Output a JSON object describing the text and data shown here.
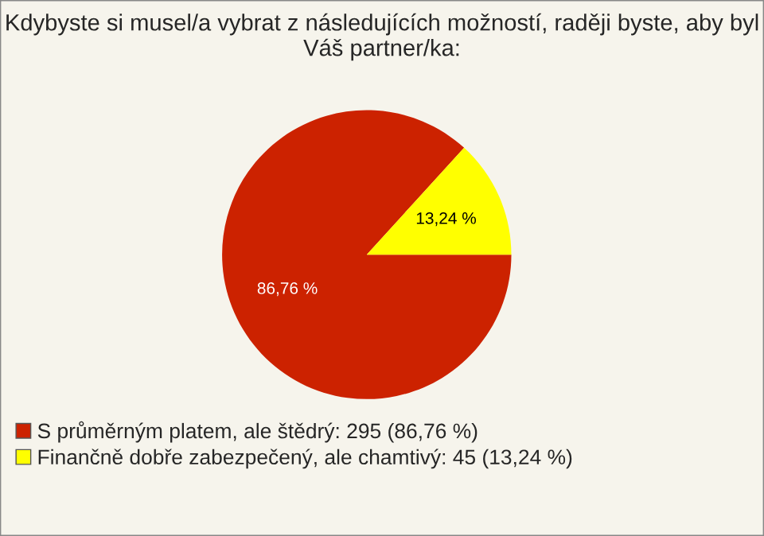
{
  "chart_data": {
    "type": "pie",
    "title": "Kdybyste si musel/a vybrat z následujících možností, raději byste, aby byl Váš partner/ka:",
    "categories": [
      "S průměrným platem, ale štědrý: 295 (86,76 %)",
      "Finančně dobře zabezpečený, ale chamtivý: 45 (13,24 %)"
    ],
    "values": [
      86.76,
      13.24
    ],
    "value_labels": [
      "86,76 %",
      "13,24 %"
    ],
    "colors": [
      "#cc2200",
      "#ffff00"
    ],
    "legend": "bottom left"
  }
}
